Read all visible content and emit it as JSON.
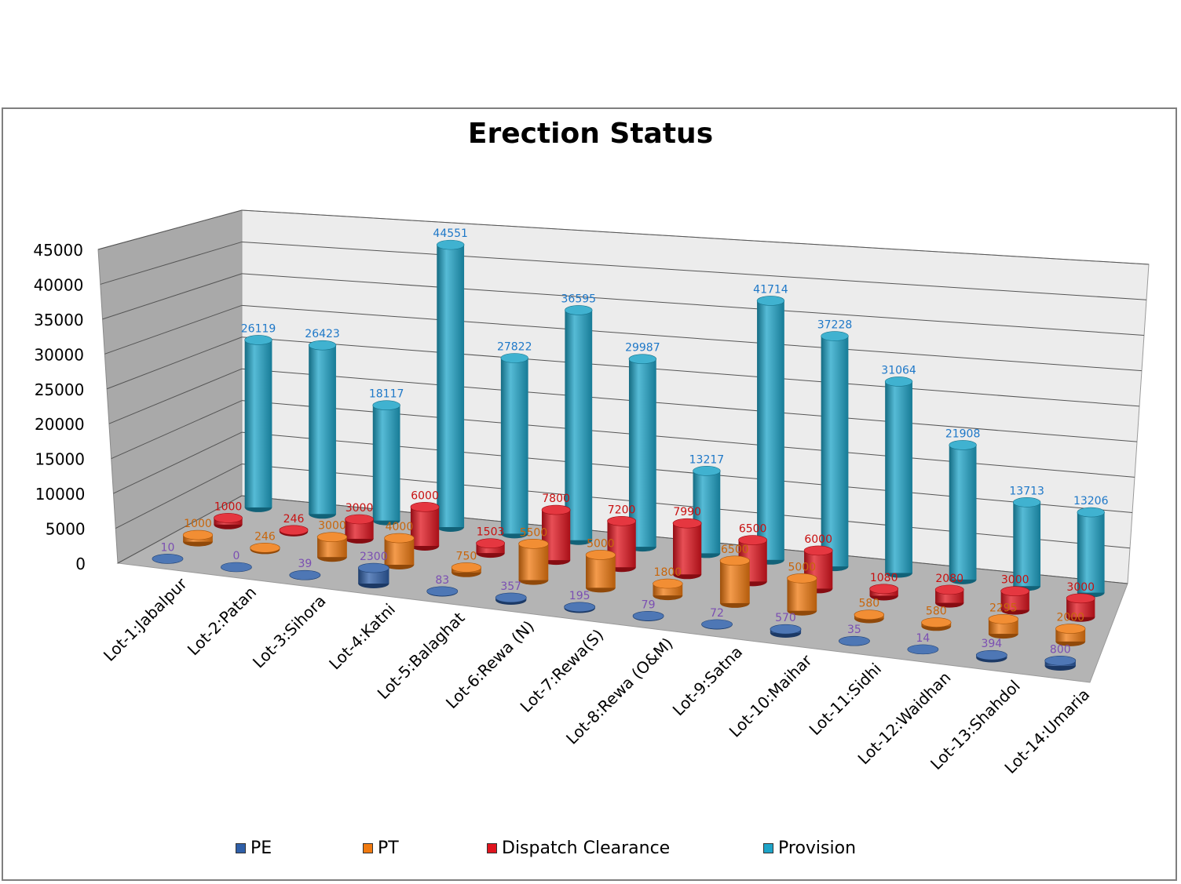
{
  "chart_data": {
    "type": "bar",
    "title": "Erection Status",
    "categories": [
      "Lot-1:Jabalpur",
      "Lot-2:Patan",
      "Lot-3:Sihora",
      "Lot-4:Katni",
      "Lot-5:Balaghat",
      "Lot-6:Rewa (N)",
      "Lot-7:Rewa(S)",
      "Lot-8:Rewa (O&M)",
      "Lot-9:Satna",
      "Lot-10:Maihar",
      "Lot-11:Sidhi",
      "Lot-12:Waidhan",
      "Lot-13:Shahdol",
      "Lot-14:Umaria"
    ],
    "series": [
      {
        "name": "PE",
        "color": "#2f5fa8",
        "label_color": "#7b4fb2",
        "values": [
          10,
          0,
          39,
          2300,
          83,
          357,
          195,
          79,
          72,
          570,
          35,
          14,
          394,
          800
        ]
      },
      {
        "name": "PT",
        "color": "#f07a10",
        "label_color": "#c8660c",
        "values": [
          1000,
          246,
          3000,
          4000,
          750,
          5500,
          5000,
          1800,
          6500,
          5000,
          580,
          580,
          2295,
          2000
        ]
      },
      {
        "name": "Dispatch Clearance",
        "color": "#e0141e",
        "label_color": "#c81010",
        "values": [
          1000,
          246,
          3000,
          6000,
          1503,
          7800,
          7200,
          7990,
          6500,
          6000,
          1080,
          2080,
          3000,
          3000
        ]
      },
      {
        "name": "Provision",
        "color": "#1ea4c8",
        "label_color": "#1e78c8",
        "values": [
          26119,
          26423,
          18117,
          44551,
          27822,
          36595,
          29987,
          13217,
          41714,
          37228,
          31064,
          21908,
          13713,
          13206
        ]
      }
    ],
    "yticks": [
      "45000",
      "40000",
      "35000",
      "30000",
      "25000",
      "20000",
      "15000",
      "10000",
      "5000",
      "0"
    ],
    "ylim": [
      0,
      45000
    ],
    "grid": true,
    "legend_position": "bottom"
  }
}
